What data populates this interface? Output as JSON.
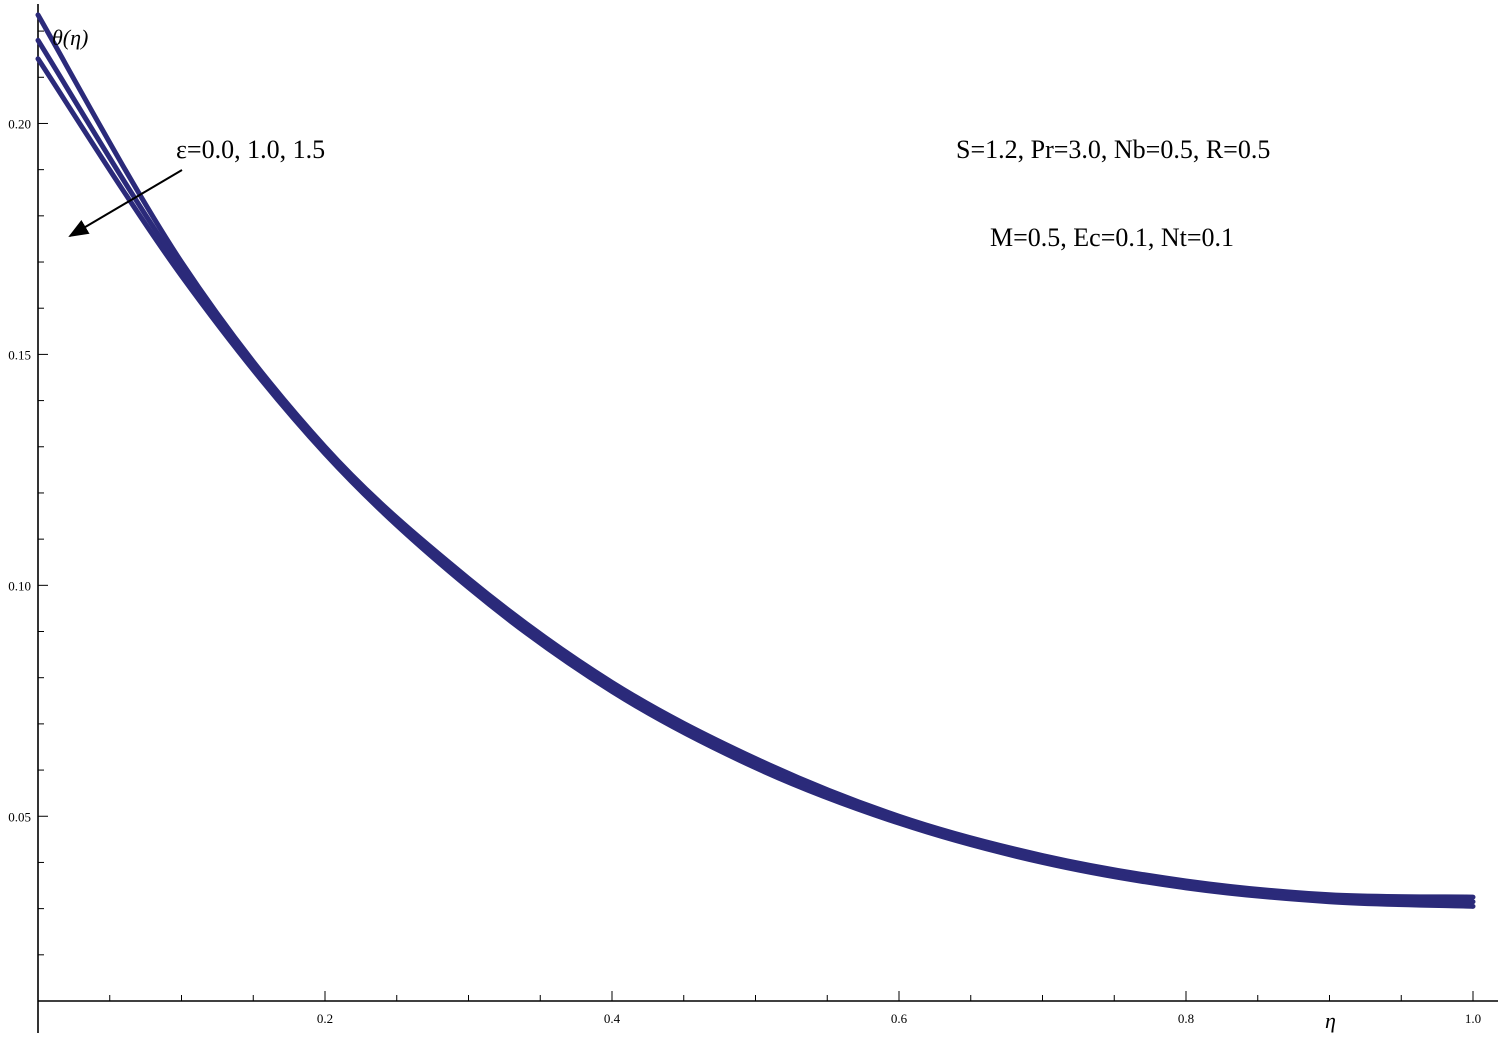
{
  "chart_data": {
    "type": "line",
    "title": "",
    "xlabel": "η",
    "ylabel": "θ(η)",
    "xlim": [
      0.0,
      1.0
    ],
    "ylim": [
      0.01,
      0.225
    ],
    "x_axis_at_y": 0.01,
    "grid": false,
    "x_ticks": [
      0.2,
      0.4,
      0.6,
      0.8,
      1.0
    ],
    "x_tick_labels": [
      "0.2",
      "0.4",
      "0.6",
      "0.8",
      "1.0"
    ],
    "y_ticks": [
      0.05,
      0.1,
      0.15,
      0.2
    ],
    "y_tick_labels": [
      "0.05",
      "0.10",
      "0.15",
      "0.20"
    ],
    "line_color": "#2b2a7a",
    "x": [
      0.0,
      0.1,
      0.2,
      0.3,
      0.4,
      0.5,
      0.6,
      0.7,
      0.8,
      0.9,
      1.0
    ],
    "series": [
      {
        "values": [
          0.2235,
          0.17,
          0.13,
          0.1015,
          0.079,
          0.0625,
          0.05,
          0.0415,
          0.036,
          0.033,
          0.0325
        ]
      },
      {
        "values": [
          0.218,
          0.1685,
          0.1295,
          0.1005,
          0.078,
          0.0615,
          0.0493,
          0.0408,
          0.0352,
          0.0322,
          0.0315
        ]
      },
      {
        "values": [
          0.214,
          0.167,
          0.1285,
          0.0995,
          0.077,
          0.0605,
          0.0485,
          0.04,
          0.0345,
          0.0315,
          0.0305
        ]
      }
    ],
    "annotations": {
      "epsilon_label": "ε=0.0, 1.0, 1.5",
      "params_line1": "S=1.2, Pr=3.0, Nb=0.5, R=0.5",
      "params_line2": "M=0.5, Ec=0.1, Nt=0.1"
    }
  }
}
